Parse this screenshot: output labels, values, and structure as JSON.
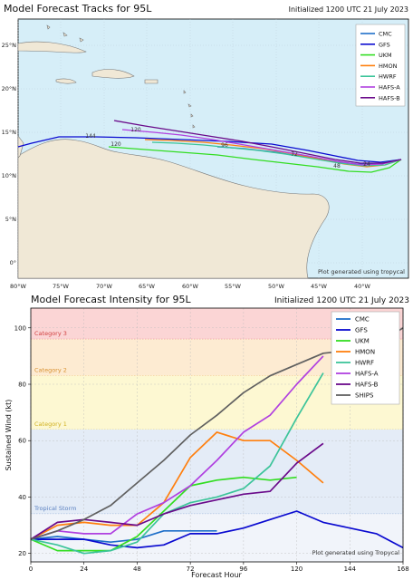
{
  "colors": {
    "CMC": "#1f6fc9",
    "GFS": "#0a0ad0",
    "UKM": "#33dd22",
    "HMON": "#ff7f0e",
    "HWRF": "#3cc49a",
    "HAFS-A": "#b040e0",
    "HAFS-B": "#6a0a8a",
    "SHIPS": "#606060"
  },
  "top": {
    "title": "Model Forecast Tracks for 95L",
    "init": "Initialized 1200 UTC 21 July 2023",
    "credit": "Plot generated using tropycal",
    "legend": [
      "CMC",
      "GFS",
      "UKM",
      "HMON",
      "HWRF",
      "HAFS-A",
      "HAFS-B"
    ],
    "lon_ticks": [
      "80°W",
      "75°W",
      "70°W",
      "65°W",
      "60°W",
      "55°W",
      "50°W",
      "45°W",
      "40°W"
    ],
    "lat_ticks": [
      "25°N",
      "20°N",
      "15°N",
      "10°N",
      "5°N",
      "0°"
    ],
    "hour_labels": [
      "144",
      "120",
      "120",
      "96",
      "72",
      "48",
      "24"
    ]
  },
  "chart_data": {
    "type": "line",
    "title": "Model Forecast Intensity for 95L",
    "subtitle": "Initialized 1200 UTC 21 July 2023",
    "xlabel": "Forecast Hour",
    "ylabel": "Sustained Wind (kt)",
    "xlim": [
      0,
      168
    ],
    "ylim": [
      17,
      107
    ],
    "xticks": [
      0,
      24,
      48,
      72,
      96,
      120,
      144,
      168
    ],
    "yticks": [
      20,
      40,
      60,
      80,
      100
    ],
    "bands": [
      {
        "label": "Category 3",
        "from": 96,
        "to": 107,
        "color": "#fbd5d5"
      },
      {
        "label": "Category 2",
        "from": 83,
        "to": 96,
        "color": "#fdebd2"
      },
      {
        "label": "Category 1",
        "from": 64,
        "to": 83,
        "color": "#fdf8d2"
      },
      {
        "label": "Tropical Storm",
        "from": 34,
        "to": 64,
        "color": "#e4ecf7"
      },
      {
        "label": "",
        "from": 17,
        "to": 34,
        "color": "#f1f4fa"
      }
    ],
    "credit": "Plot generated using Tropycal",
    "series": [
      {
        "name": "CMC",
        "x": [
          0,
          12,
          24,
          36,
          48,
          60,
          72,
          84
        ],
        "values": [
          25,
          26,
          25,
          24,
          25,
          28,
          28,
          28
        ]
      },
      {
        "name": "GFS",
        "x": [
          0,
          12,
          24,
          36,
          48,
          60,
          72,
          84,
          96,
          108,
          120,
          132,
          144,
          156,
          168
        ],
        "values": [
          25,
          25,
          25,
          23,
          22,
          23,
          27,
          27,
          29,
          32,
          35,
          31,
          29,
          27,
          22
        ]
      },
      {
        "name": "UKM",
        "x": [
          0,
          12,
          24,
          36,
          48,
          60,
          72,
          84,
          96,
          108,
          120
        ],
        "values": [
          25,
          21,
          21,
          21,
          26,
          35,
          44,
          46,
          47,
          46,
          47
        ]
      },
      {
        "name": "HMON",
        "x": [
          0,
          12,
          24,
          36,
          48,
          60,
          72,
          84,
          96,
          108,
          120,
          132
        ],
        "values": [
          25,
          30,
          31,
          30,
          30,
          38,
          54,
          63,
          60,
          60,
          53,
          45
        ]
      },
      {
        "name": "HWRF",
        "x": [
          0,
          12,
          24,
          36,
          48,
          60,
          72,
          84,
          96,
          108,
          120,
          132
        ],
        "values": [
          25,
          23,
          20,
          21,
          24,
          34,
          38,
          40,
          43,
          51,
          68,
          84
        ]
      },
      {
        "name": "HAFS-A",
        "x": [
          0,
          12,
          24,
          36,
          48,
          60,
          72,
          84,
          96,
          108,
          120,
          132
        ],
        "values": [
          25,
          28,
          27,
          27,
          34,
          38,
          44,
          53,
          63,
          69,
          80,
          90
        ]
      },
      {
        "name": "HAFS-B",
        "x": [
          0,
          12,
          24,
          36,
          48,
          60,
          72,
          84,
          96,
          108,
          120,
          132
        ],
        "values": [
          25,
          31,
          32,
          31,
          30,
          34,
          37,
          39,
          41,
          42,
          52,
          59
        ]
      },
      {
        "name": "SHIPS",
        "x": [
          0,
          12,
          24,
          36,
          48,
          60,
          72,
          84,
          96,
          108,
          120,
          132,
          144,
          156,
          168
        ],
        "values": [
          25,
          28,
          32,
          37,
          45,
          53,
          62,
          69,
          77,
          83,
          87,
          91,
          92,
          94,
          100
        ]
      }
    ]
  }
}
